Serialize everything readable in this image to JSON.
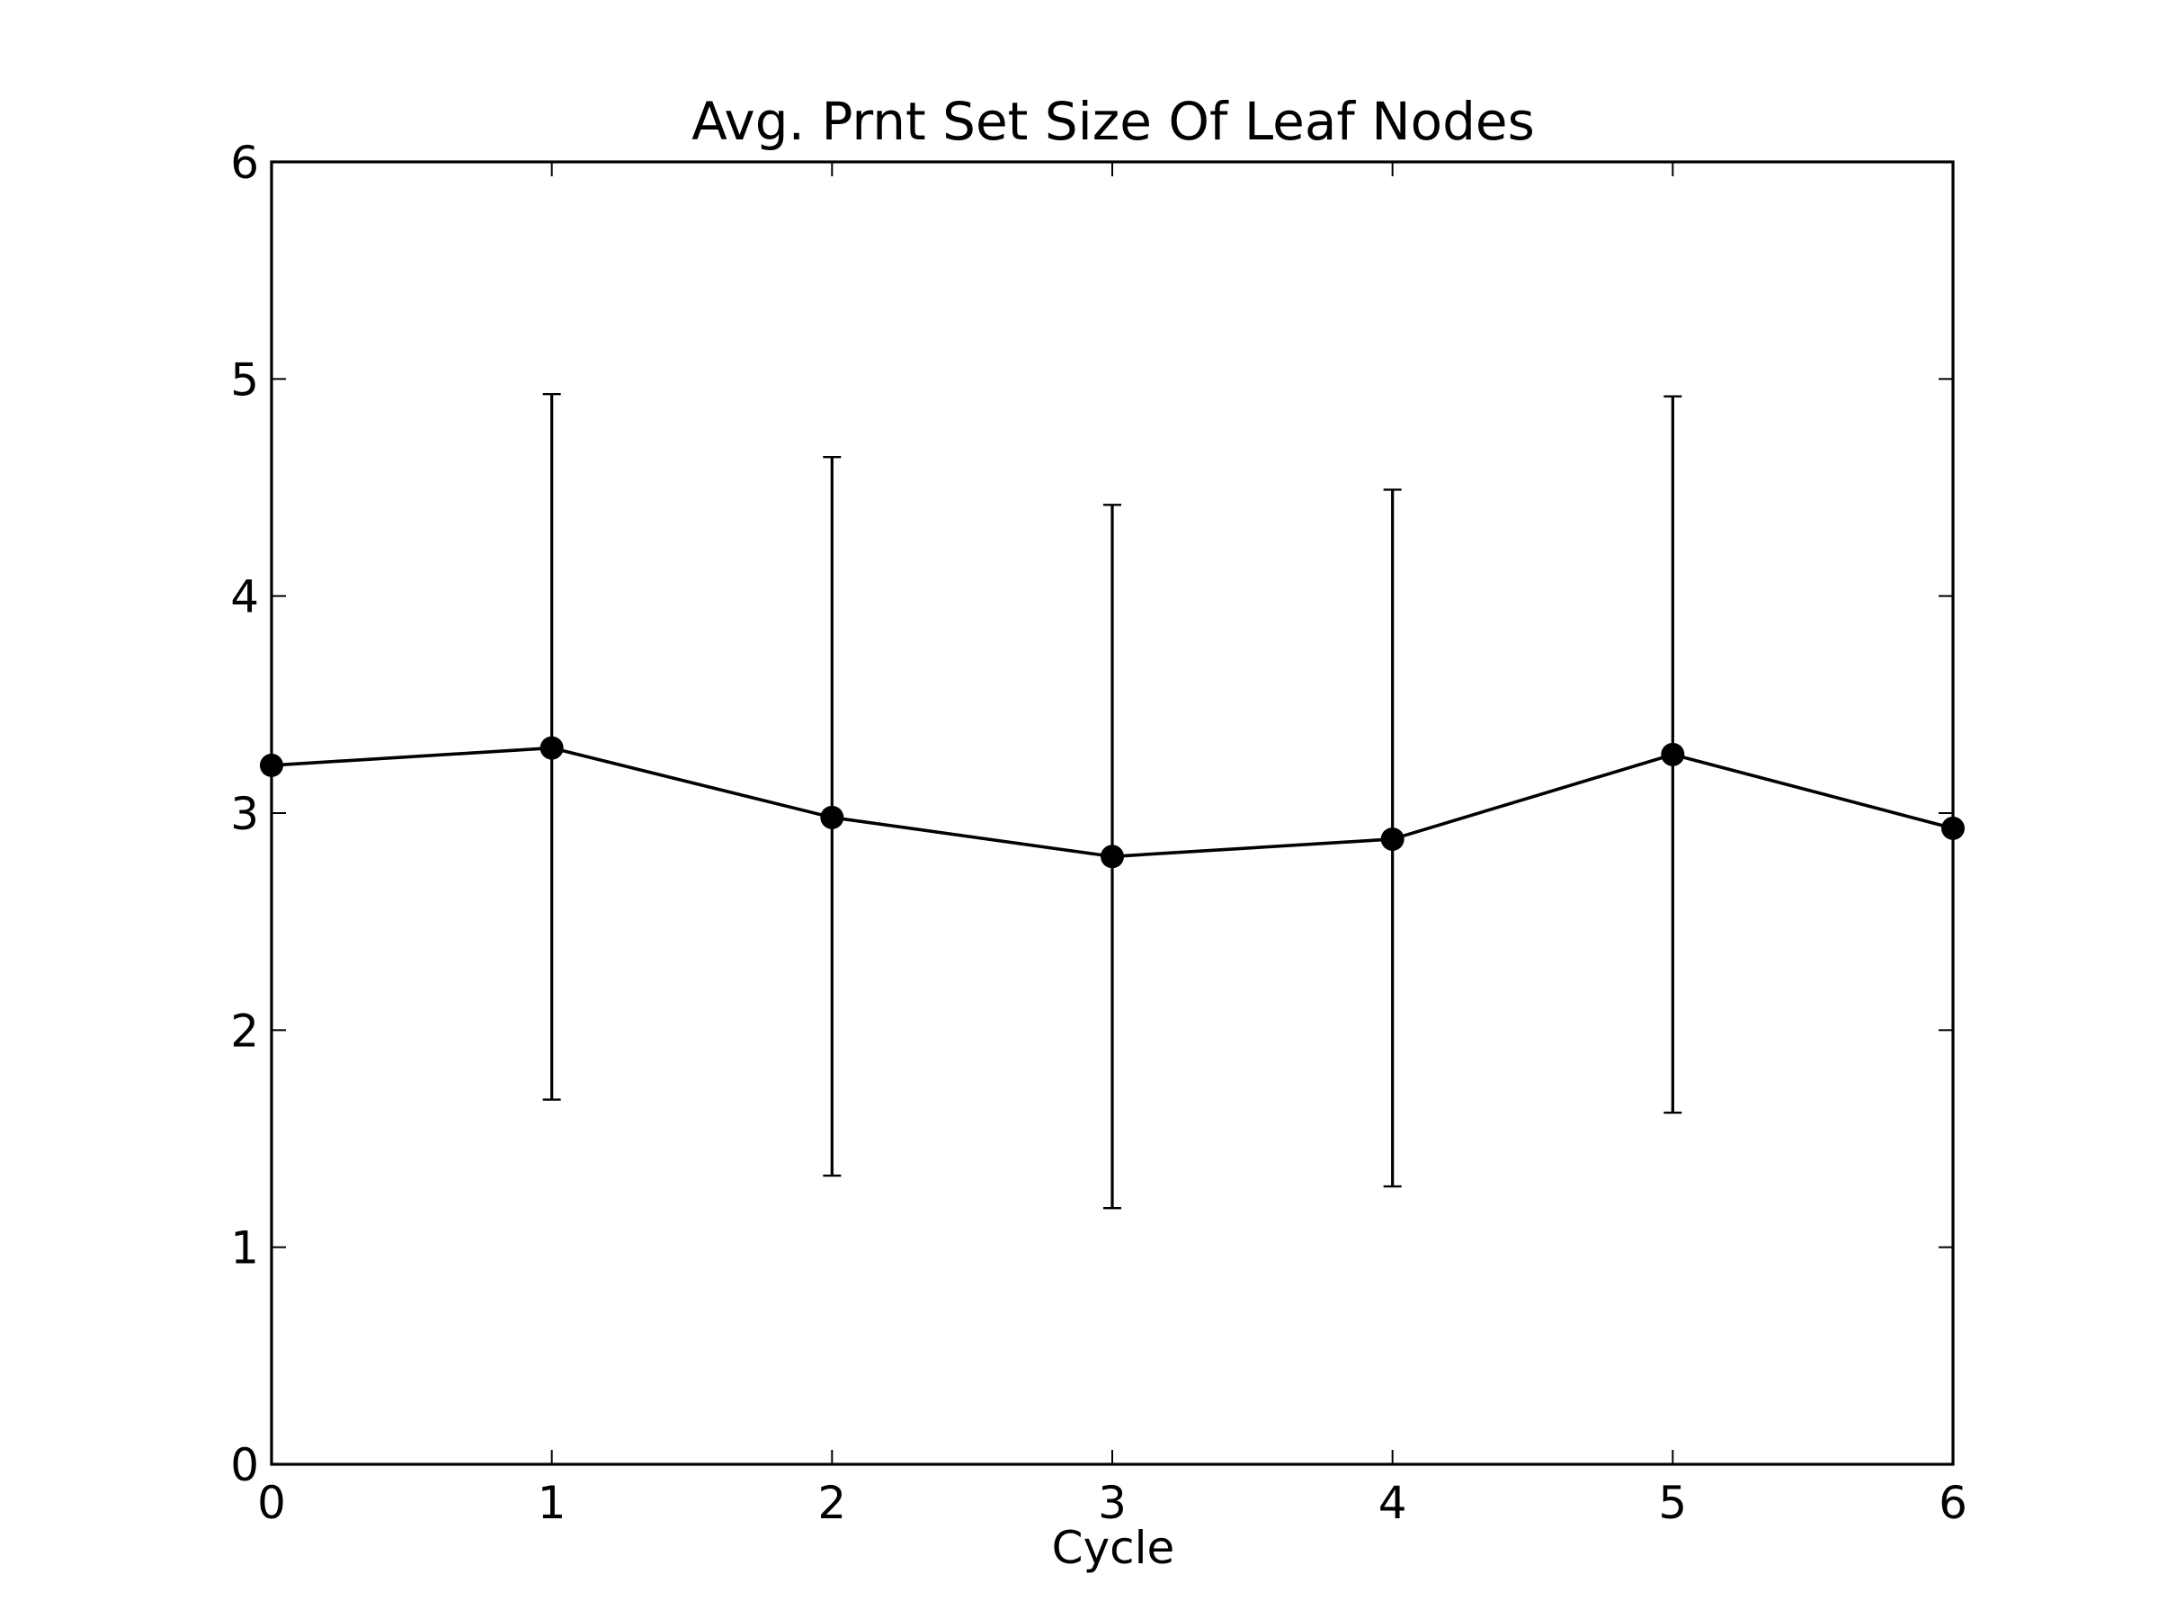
{
  "chart_data": {
    "type": "line",
    "title": "Avg. Prnt Set Size Of Leaf Nodes",
    "xlabel": "Cycle",
    "ylabel": "",
    "xlim": [
      0,
      6
    ],
    "ylim": [
      0,
      6
    ],
    "x_ticks": [
      "0",
      "1",
      "2",
      "3",
      "4",
      "5",
      "6"
    ],
    "y_ticks": [
      "0",
      "1",
      "2",
      "3",
      "4",
      "5",
      "6"
    ],
    "grid": false,
    "legend": "none",
    "series": [
      {
        "x": [
          0,
          1,
          2,
          3,
          4,
          5,
          6
        ],
        "y": [
          3.22,
          3.3,
          2.98,
          2.8,
          2.88,
          3.27,
          2.93
        ],
        "error_lower": [
          null,
          1.68,
          1.33,
          1.18,
          1.28,
          1.62,
          null
        ],
        "error_upper": [
          null,
          4.93,
          4.64,
          4.42,
          4.49,
          4.92,
          null
        ],
        "color": "#000000",
        "marker": "circle"
      }
    ]
  }
}
